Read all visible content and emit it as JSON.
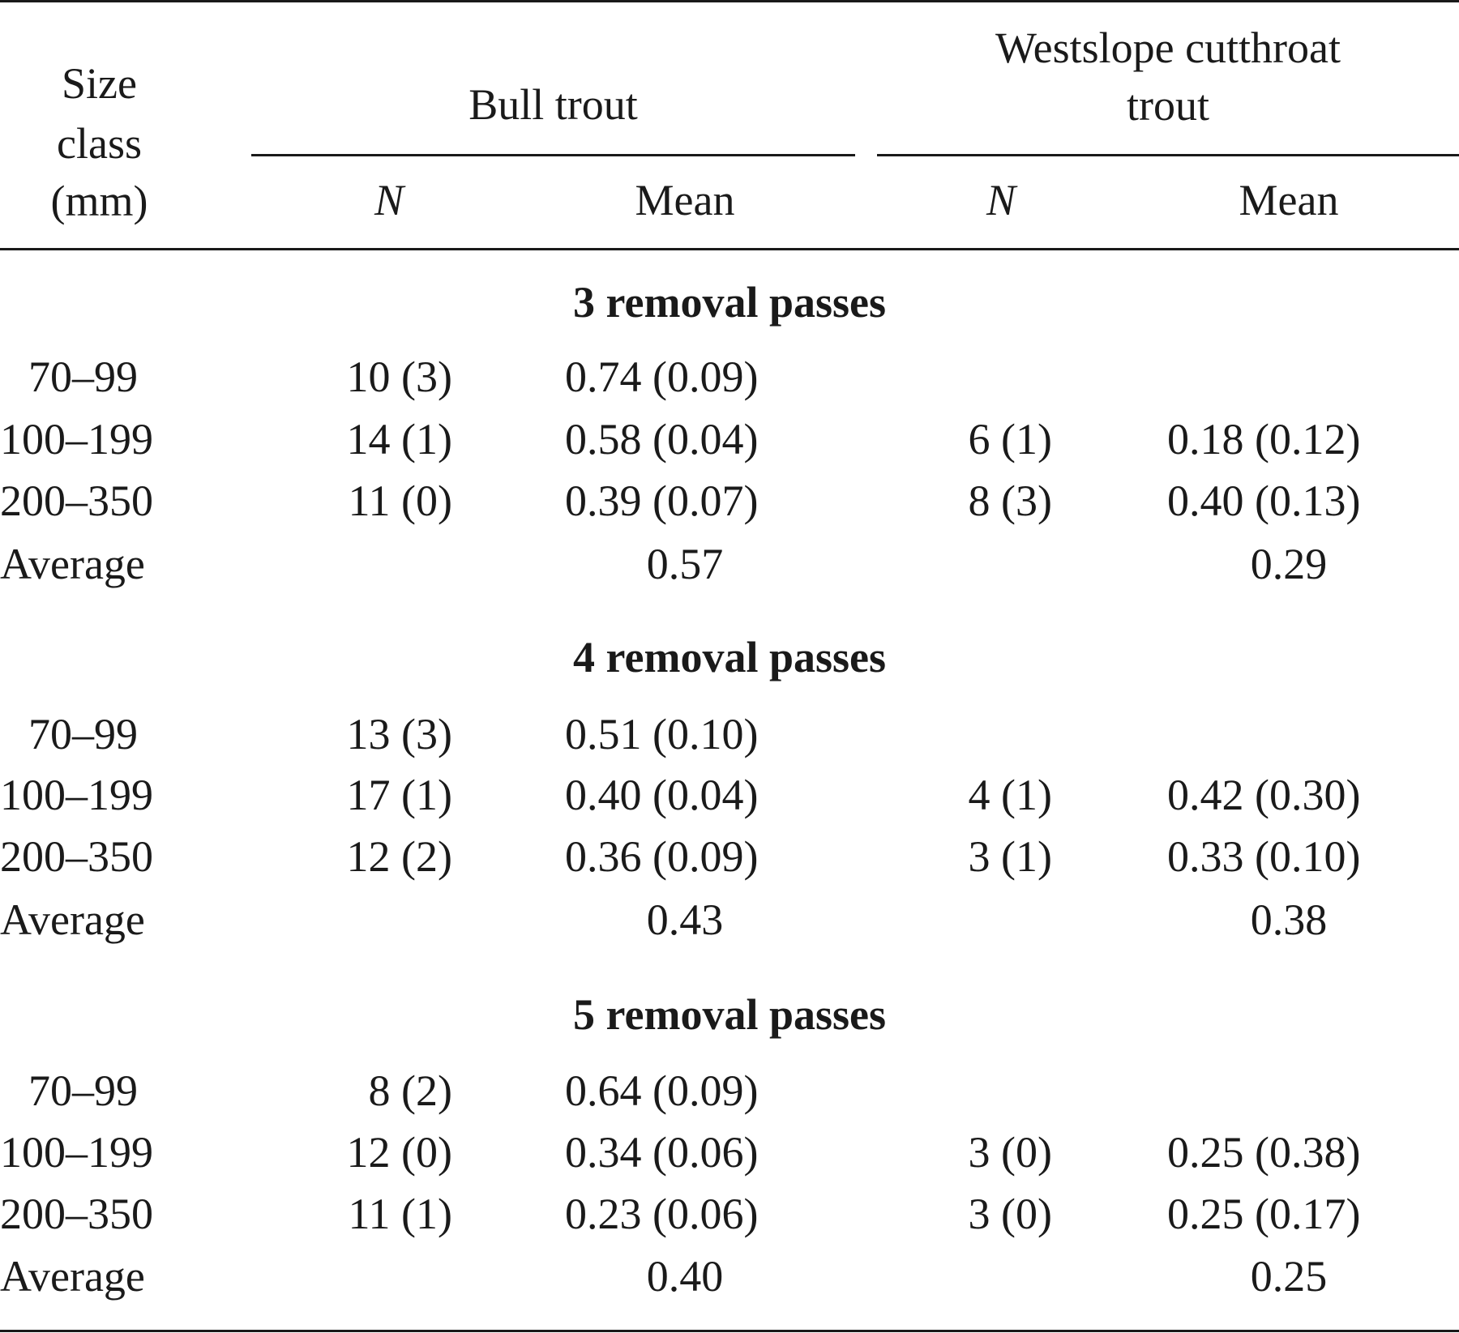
{
  "header": {
    "size_class": [
      "Size",
      "class",
      "(mm)"
    ],
    "species_1": "Bull trout",
    "species_2": [
      "Westslope cutthroat",
      "trout"
    ],
    "col_n": "N",
    "col_mean": "Mean"
  },
  "sections": [
    {
      "title": "3 removal passes",
      "rows": [
        {
          "size": "70–99",
          "bt_n": "10 (3)",
          "bt_mean": "0.74 (0.09)",
          "wct_n": "",
          "wct_mean": ""
        },
        {
          "size": "100–199",
          "bt_n": "14 (1)",
          "bt_mean": "0.58 (0.04)",
          "wct_n": "6 (1)",
          "wct_mean": "0.18 (0.12)"
        },
        {
          "size": "200–350",
          "bt_n": "11 (0)",
          "bt_mean": "0.39 (0.07)",
          "wct_n": "8 (3)",
          "wct_mean": "0.40 (0.13)"
        }
      ],
      "average": {
        "label": "Average",
        "bt": "0.57",
        "wct": "0.29"
      }
    },
    {
      "title": "4 removal passes",
      "rows": [
        {
          "size": "70–99",
          "bt_n": "13 (3)",
          "bt_mean": "0.51 (0.10)",
          "wct_n": "",
          "wct_mean": ""
        },
        {
          "size": "100–199",
          "bt_n": "17 (1)",
          "bt_mean": "0.40 (0.04)",
          "wct_n": "4 (1)",
          "wct_mean": "0.42 (0.30)"
        },
        {
          "size": "200–350",
          "bt_n": "12 (2)",
          "bt_mean": "0.36 (0.09)",
          "wct_n": "3 (1)",
          "wct_mean": "0.33 (0.10)"
        }
      ],
      "average": {
        "label": "Average",
        "bt": "0.43",
        "wct": "0.38"
      }
    },
    {
      "title": "5 removal passes",
      "rows": [
        {
          "size": "70–99",
          "bt_n": "8 (2)",
          "bt_mean": "0.64 (0.09)",
          "wct_n": "",
          "wct_mean": ""
        },
        {
          "size": "100–199",
          "bt_n": "12 (0)",
          "bt_mean": "0.34 (0.06)",
          "wct_n": "3 (0)",
          "wct_mean": "0.25 (0.38)"
        },
        {
          "size": "200–350",
          "bt_n": "11 (1)",
          "bt_mean": "0.23 (0.06)",
          "wct_n": "3 (0)",
          "wct_mean": "0.25 (0.17)"
        }
      ],
      "average": {
        "label": "Average",
        "bt": "0.40",
        "wct": "0.25"
      }
    }
  ]
}
